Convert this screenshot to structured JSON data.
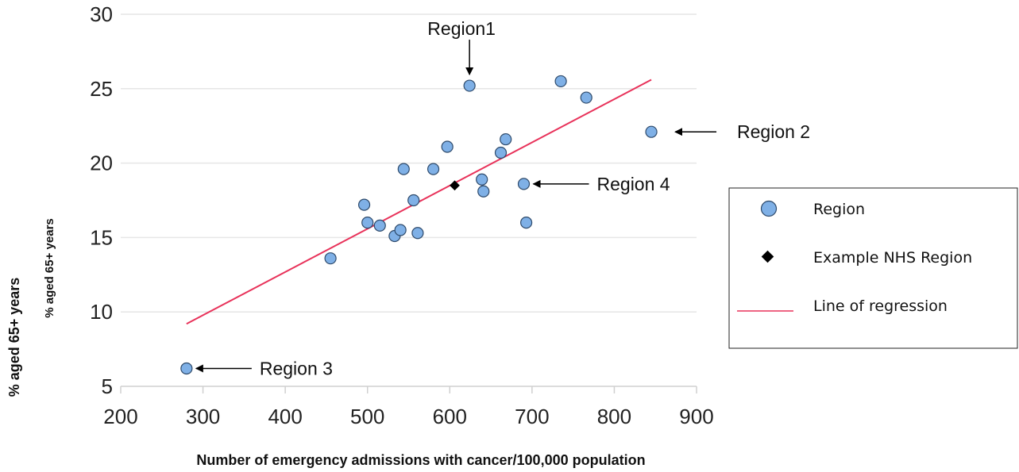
{
  "chart_data": {
    "type": "scatter",
    "title": "",
    "xlabel": "Number of emergency admissions with cancer/100,000 population",
    "ylabel": "% aged 65+ years",
    "ylabel_inner": "% aged 65+ years",
    "xlim": [
      200,
      900
    ],
    "ylim": [
      5,
      30
    ],
    "x_ticks": [
      "200",
      "300",
      "400",
      "500",
      "600",
      "700",
      "800",
      "900"
    ],
    "y_ticks": [
      "5",
      "10",
      "15",
      "20",
      "25",
      "30"
    ],
    "grid": "horizontal",
    "legend_position": "right",
    "colors": {
      "region_fill": "#7fb0e6",
      "region_stroke": "#2e4a6b",
      "example": "#000000",
      "regression": "#e8325a",
      "grid": "#e6e6e6",
      "axis": "#d0d0d0"
    },
    "series": [
      {
        "name": "Region",
        "points": [
          {
            "x": 280,
            "y": 6.2
          },
          {
            "x": 455,
            "y": 13.6
          },
          {
            "x": 496,
            "y": 17.2
          },
          {
            "x": 500,
            "y": 16.0
          },
          {
            "x": 515,
            "y": 15.8
          },
          {
            "x": 533,
            "y": 15.1
          },
          {
            "x": 540,
            "y": 15.5
          },
          {
            "x": 544,
            "y": 19.6
          },
          {
            "x": 556,
            "y": 17.5
          },
          {
            "x": 561,
            "y": 15.3
          },
          {
            "x": 580,
            "y": 19.6
          },
          {
            "x": 597,
            "y": 21.1
          },
          {
            "x": 624,
            "y": 25.2
          },
          {
            "x": 639,
            "y": 18.9
          },
          {
            "x": 641,
            "y": 18.1
          },
          {
            "x": 662,
            "y": 20.7
          },
          {
            "x": 668,
            "y": 21.6
          },
          {
            "x": 690,
            "y": 18.6
          },
          {
            "x": 693,
            "y": 16.0
          },
          {
            "x": 735,
            "y": 25.5
          },
          {
            "x": 766,
            "y": 24.4
          },
          {
            "x": 845,
            "y": 22.1
          }
        ]
      },
      {
        "name": "Example NHS Region",
        "points": [
          {
            "x": 606,
            "y": 18.5
          }
        ]
      }
    ],
    "regression": {
      "name": "Line of regression",
      "from": {
        "x": 280,
        "y": 9.2
      },
      "to": {
        "x": 845,
        "y": 25.6
      }
    },
    "annotations": [
      {
        "text": "Region1",
        "target": {
          "x": 624,
          "y": 25.2
        },
        "direction": "above"
      },
      {
        "text": "Region 2",
        "target": {
          "x": 845,
          "y": 22.1
        },
        "direction": "right"
      },
      {
        "text": "Region 3",
        "target": {
          "x": 280,
          "y": 6.2
        },
        "direction": "right"
      },
      {
        "text": "Region 4",
        "target": {
          "x": 690,
          "y": 18.6
        },
        "direction": "right"
      }
    ],
    "legend": [
      {
        "label": "Region",
        "marker": "circle"
      },
      {
        "label": "Example NHS Region",
        "marker": "diamond"
      },
      {
        "label": "Line of regression",
        "marker": "line"
      }
    ]
  }
}
